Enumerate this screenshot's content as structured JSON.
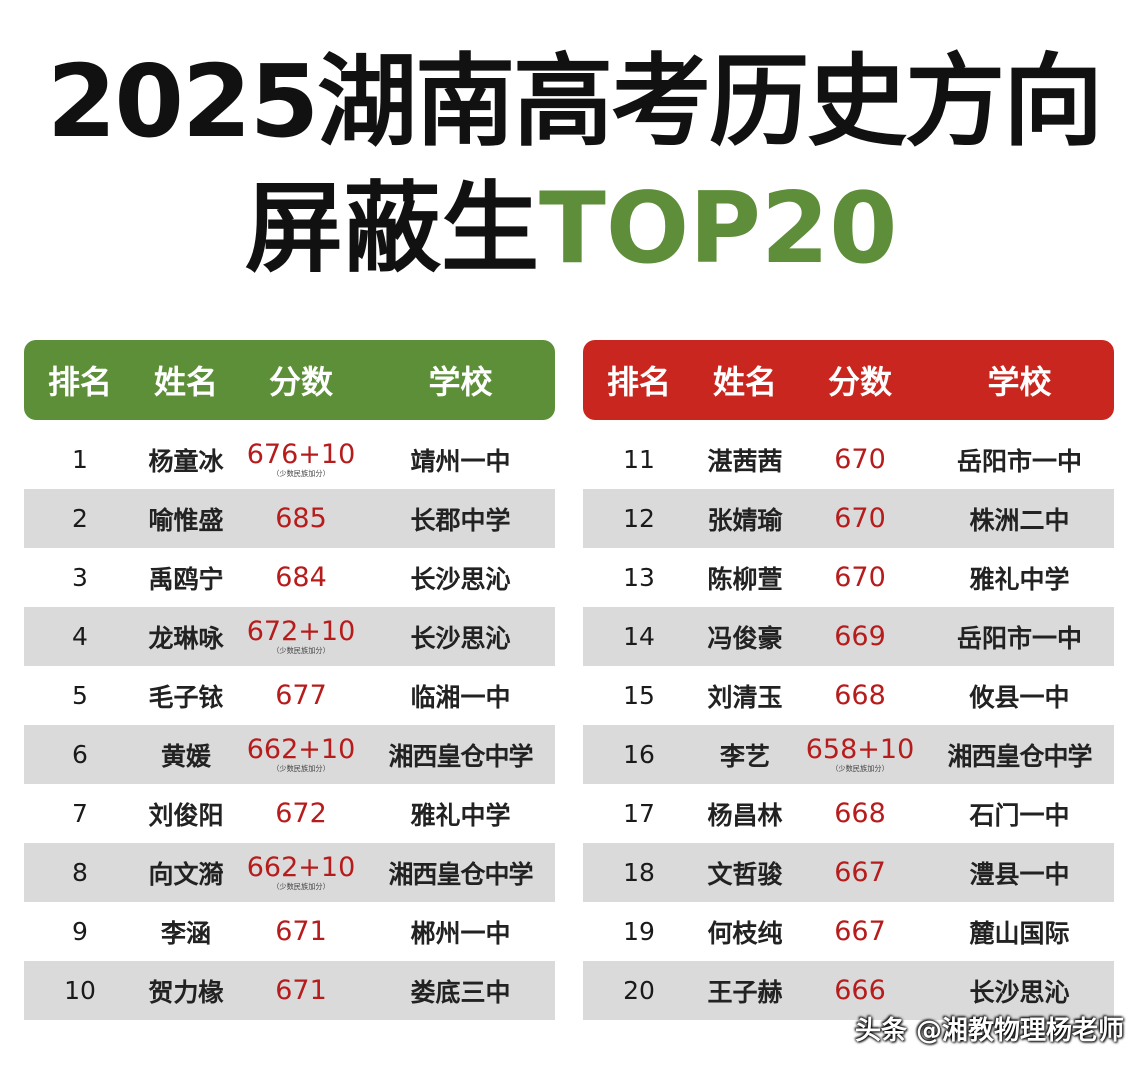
{
  "title": {
    "line1": "2025湖南高考历史方向",
    "line2_main": "屏蔽生",
    "line2_accent": "TOP20"
  },
  "headers": [
    "排名",
    "姓名",
    "分数",
    "学校"
  ],
  "score_note": "（少数民族加分）",
  "left_rows": [
    {
      "rank": "1",
      "name": "杨童冰",
      "score": "676+10",
      "note": true,
      "school": "靖州一中"
    },
    {
      "rank": "2",
      "name": "喻惟盛",
      "score": "685",
      "note": false,
      "school": "长郡中学"
    },
    {
      "rank": "3",
      "name": "禹鸥宁",
      "score": "684",
      "note": false,
      "school": "长沙思沁"
    },
    {
      "rank": "4",
      "name": "龙琳咏",
      "score": "672+10",
      "note": true,
      "school": "长沙思沁"
    },
    {
      "rank": "5",
      "name": "毛子铱",
      "score": "677",
      "note": false,
      "school": "临湘一中"
    },
    {
      "rank": "6",
      "name": "黄媛",
      "score": "662+10",
      "note": true,
      "school": "湘西皇仓中学"
    },
    {
      "rank": "7",
      "name": "刘俊阳",
      "score": "672",
      "note": false,
      "school": "雅礼中学"
    },
    {
      "rank": "8",
      "name": "向文漪",
      "score": "662+10",
      "note": true,
      "school": "湘西皇仓中学"
    },
    {
      "rank": "9",
      "name": "李涵",
      "score": "671",
      "note": false,
      "school": "郴州一中"
    },
    {
      "rank": "10",
      "name": "贺力椽",
      "score": "671",
      "note": false,
      "school": "娄底三中"
    }
  ],
  "right_rows": [
    {
      "rank": "11",
      "name": "湛茜茜",
      "score": "670",
      "note": false,
      "school": "岳阳市一中"
    },
    {
      "rank": "12",
      "name": "张婧瑜",
      "score": "670",
      "note": false,
      "school": "株洲二中"
    },
    {
      "rank": "13",
      "name": "陈柳萱",
      "score": "670",
      "note": false,
      "school": "雅礼中学"
    },
    {
      "rank": "14",
      "name": "冯俊豪",
      "score": "669",
      "note": false,
      "school": "岳阳市一中"
    },
    {
      "rank": "15",
      "name": "刘清玉",
      "score": "668",
      "note": false,
      "school": "攸县一中"
    },
    {
      "rank": "16",
      "name": "李艺",
      "score": "658+10",
      "note": true,
      "school": "湘西皇仓中学"
    },
    {
      "rank": "17",
      "name": "杨昌林",
      "score": "668",
      "note": false,
      "school": "石门一中"
    },
    {
      "rank": "18",
      "name": "文哲骏",
      "score": "667",
      "note": false,
      "school": "澧县一中"
    },
    {
      "rank": "19",
      "name": "何枝纯",
      "score": "667",
      "note": false,
      "school": "麓山国际"
    },
    {
      "rank": "20",
      "name": "王子赫",
      "score": "666",
      "note": false,
      "school": "长沙思沁"
    }
  ],
  "watermark": "头条 @湘教物理杨老师",
  "colors": {
    "left_header": "#5c8f38",
    "right_header": "#c9261f",
    "score": "#b71c1c",
    "accent": "#5e8e3a"
  }
}
